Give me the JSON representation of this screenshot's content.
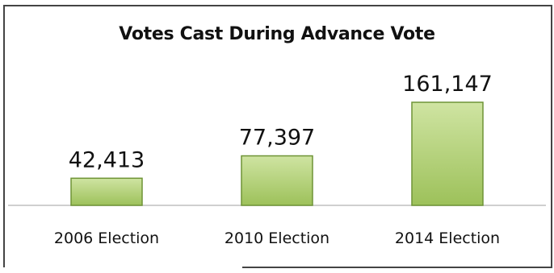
{
  "chart_data": {
    "type": "bar",
    "title": "Votes Cast During Advance Vote",
    "categories": [
      "2006 Election",
      "2010 Election",
      "2014 Election"
    ],
    "values": [
      42413,
      77397,
      161147
    ],
    "data_labels": [
      "42,413",
      "77,397",
      "161,147"
    ],
    "ylim": [
      0,
      161147
    ],
    "grid": false,
    "legend": "none",
    "xlabel": "",
    "ylabel": ""
  },
  "colors": {
    "bar_fill": "#9dc15a",
    "bar_highlight": "#cfe4a2",
    "bar_edge": "#6f9436",
    "baseline": "#bfbfbf"
  }
}
